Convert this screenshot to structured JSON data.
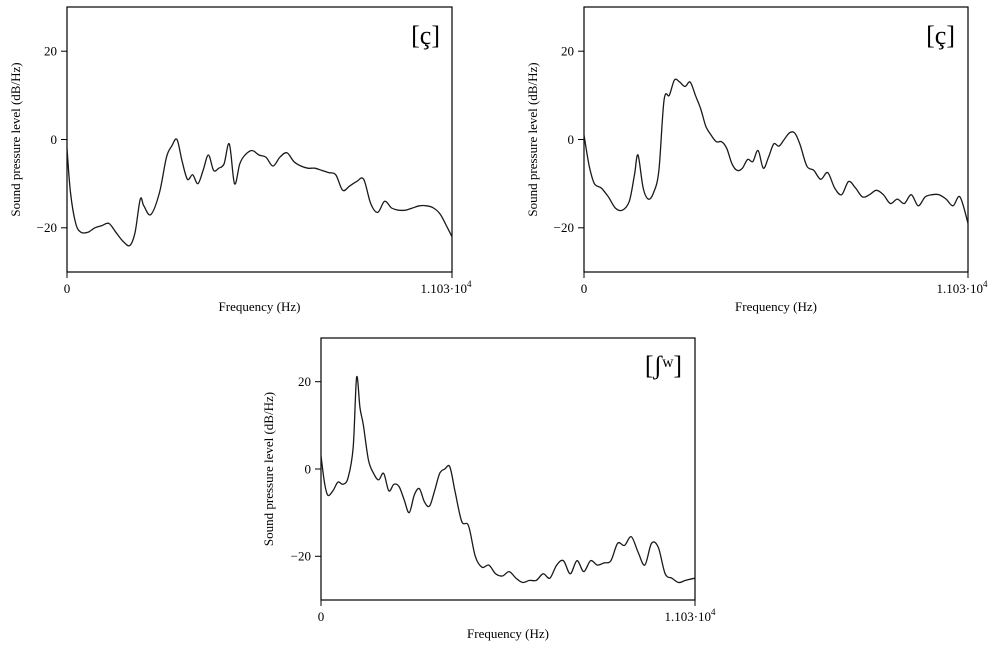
{
  "chart_data": [
    {
      "type": "line",
      "label": "[ç]",
      "xlabel": "Frequency (Hz)",
      "ylabel": "Sound pressure level (dB/Hz)",
      "xlim": [
        0,
        11030
      ],
      "ylim": [
        -30,
        30
      ],
      "x_tick_labels": {
        "start": "0",
        "end_base": "1.103·10",
        "end_exp": "4"
      },
      "y_ticks": [
        20,
        0,
        -20
      ],
      "y_tick_labels": [
        "20",
        "0",
        "−20"
      ],
      "series": [
        {
          "x": [
            0,
            100,
            250,
            400,
            600,
            800,
            1000,
            1200,
            1400,
            1600,
            1800,
            1950,
            2100,
            2200,
            2400,
            2650,
            2850,
            3000,
            3150,
            3300,
            3450,
            3600,
            3750,
            3900,
            4050,
            4200,
            4350,
            4500,
            4650,
            4800,
            4950,
            5100,
            5300,
            5500,
            5700,
            5900,
            6100,
            6300,
            6500,
            6700,
            6900,
            7100,
            7300,
            7500,
            7700,
            7900,
            8100,
            8300,
            8500,
            8700,
            8900,
            9100,
            9300,
            9500,
            9700,
            9900,
            10100,
            10300,
            10500,
            10700,
            10900,
            11030
          ],
          "y": [
            -2,
            -12,
            -19,
            -21,
            -21,
            -20,
            -19.5,
            -19,
            -21,
            -23,
            -24,
            -21,
            -13.5,
            -15,
            -17,
            -12,
            -4,
            -1.5,
            0,
            -5,
            -9,
            -8,
            -10,
            -7,
            -3.5,
            -7,
            -6.5,
            -5.5,
            -1,
            -10,
            -5.5,
            -3.5,
            -2.5,
            -3.5,
            -4,
            -6,
            -4,
            -3,
            -5,
            -6,
            -6.5,
            -6.5,
            -7,
            -7.5,
            -8,
            -11.5,
            -10.5,
            -9.5,
            -9,
            -14.5,
            -16.5,
            -14,
            -15.5,
            -16,
            -16,
            -15.5,
            -15,
            -15,
            -15.5,
            -17,
            -20,
            -22
          ]
        }
      ]
    },
    {
      "type": "line",
      "label": "[ç]",
      "xlabel": "Frequency (Hz)",
      "ylabel": "Sound pressure level (dB/Hz)",
      "xlim": [
        0,
        11030
      ],
      "ylim": [
        -30,
        30
      ],
      "x_tick_labels": {
        "start": "0",
        "end_base": "1.103·10",
        "end_exp": "4"
      },
      "y_ticks": [
        20,
        0,
        -20
      ],
      "y_tick_labels": [
        "20",
        "0",
        "−20"
      ],
      "series": [
        {
          "x": [
            0,
            150,
            300,
            500,
            700,
            900,
            1100,
            1300,
            1450,
            1550,
            1700,
            1850,
            2000,
            2150,
            2300,
            2450,
            2600,
            2750,
            2900,
            3050,
            3200,
            3350,
            3500,
            3650,
            3800,
            3950,
            4100,
            4250,
            4400,
            4550,
            4700,
            4850,
            5000,
            5150,
            5300,
            5450,
            5600,
            5750,
            5900,
            6050,
            6200,
            6400,
            6600,
            6800,
            7000,
            7200,
            7400,
            7600,
            7800,
            8000,
            8200,
            8400,
            8600,
            8800,
            9000,
            9200,
            9400,
            9600,
            9800,
            10000,
            10200,
            10400,
            10600,
            10800,
            11030
          ],
          "y": [
            1,
            -6,
            -10,
            -11,
            -13,
            -15.5,
            -16,
            -14,
            -8,
            -3.5,
            -11,
            -13.5,
            -12,
            -7,
            9,
            10,
            13.5,
            13,
            12,
            13,
            10,
            7,
            3,
            1,
            -0.5,
            -0.5,
            -2,
            -5.5,
            -7,
            -6.5,
            -4.5,
            -5,
            -2.5,
            -6.5,
            -4,
            -1,
            -1.5,
            0,
            1.5,
            1.5,
            -1,
            -6,
            -7,
            -9,
            -7.5,
            -11,
            -12.5,
            -9.5,
            -11,
            -13,
            -12.5,
            -11.5,
            -12.5,
            -14.5,
            -13.5,
            -14.5,
            -12.5,
            -15,
            -13,
            -12.5,
            -12.5,
            -13.5,
            -15,
            -13,
            -19
          ]
        }
      ]
    },
    {
      "type": "line",
      "label": "[ʃʷ]",
      "xlabel": "Frequency (Hz)",
      "ylabel": "Sound pressure level (dB/Hz)",
      "xlim": [
        0,
        11030
      ],
      "ylim": [
        -30,
        30
      ],
      "x_tick_labels": {
        "start": "0",
        "end_base": "1.103·10",
        "end_exp": "4"
      },
      "y_ticks": [
        20,
        0,
        -20
      ],
      "y_tick_labels": [
        "20",
        "0",
        "−20"
      ],
      "series": [
        {
          "x": [
            0,
            100,
            200,
            350,
            500,
            650,
            800,
            950,
            1050,
            1150,
            1250,
            1400,
            1550,
            1700,
            1850,
            2000,
            2150,
            2300,
            2450,
            2600,
            2750,
            2900,
            3050,
            3200,
            3350,
            3500,
            3650,
            3800,
            3950,
            4150,
            4350,
            4550,
            4750,
            4950,
            5150,
            5350,
            5550,
            5750,
            5950,
            6150,
            6350,
            6550,
            6750,
            6950,
            7150,
            7350,
            7550,
            7750,
            7950,
            8150,
            8350,
            8550,
            8750,
            8950,
            9150,
            9350,
            9550,
            9750,
            9950,
            10150,
            10350,
            10550,
            10750,
            11030
          ],
          "y": [
            3,
            -3,
            -6,
            -5,
            -3,
            -3.5,
            -2,
            5,
            21,
            14,
            10,
            2,
            -1,
            -2.5,
            -1,
            -5,
            -3.5,
            -4,
            -7,
            -10,
            -6,
            -4.5,
            -7.5,
            -8.5,
            -5,
            -1,
            0,
            0.5,
            -5,
            -12,
            -13,
            -20,
            -22.5,
            -22,
            -24,
            -24.5,
            -23.5,
            -25,
            -26,
            -25.5,
            -25.5,
            -24,
            -25,
            -22,
            -21,
            -24,
            -21,
            -23.5,
            -21,
            -22,
            -21.5,
            -21,
            -17,
            -17.5,
            -15.5,
            -19,
            -22,
            -17,
            -18,
            -24,
            -25,
            -26,
            -25.5,
            -25
          ]
        }
      ]
    }
  ]
}
